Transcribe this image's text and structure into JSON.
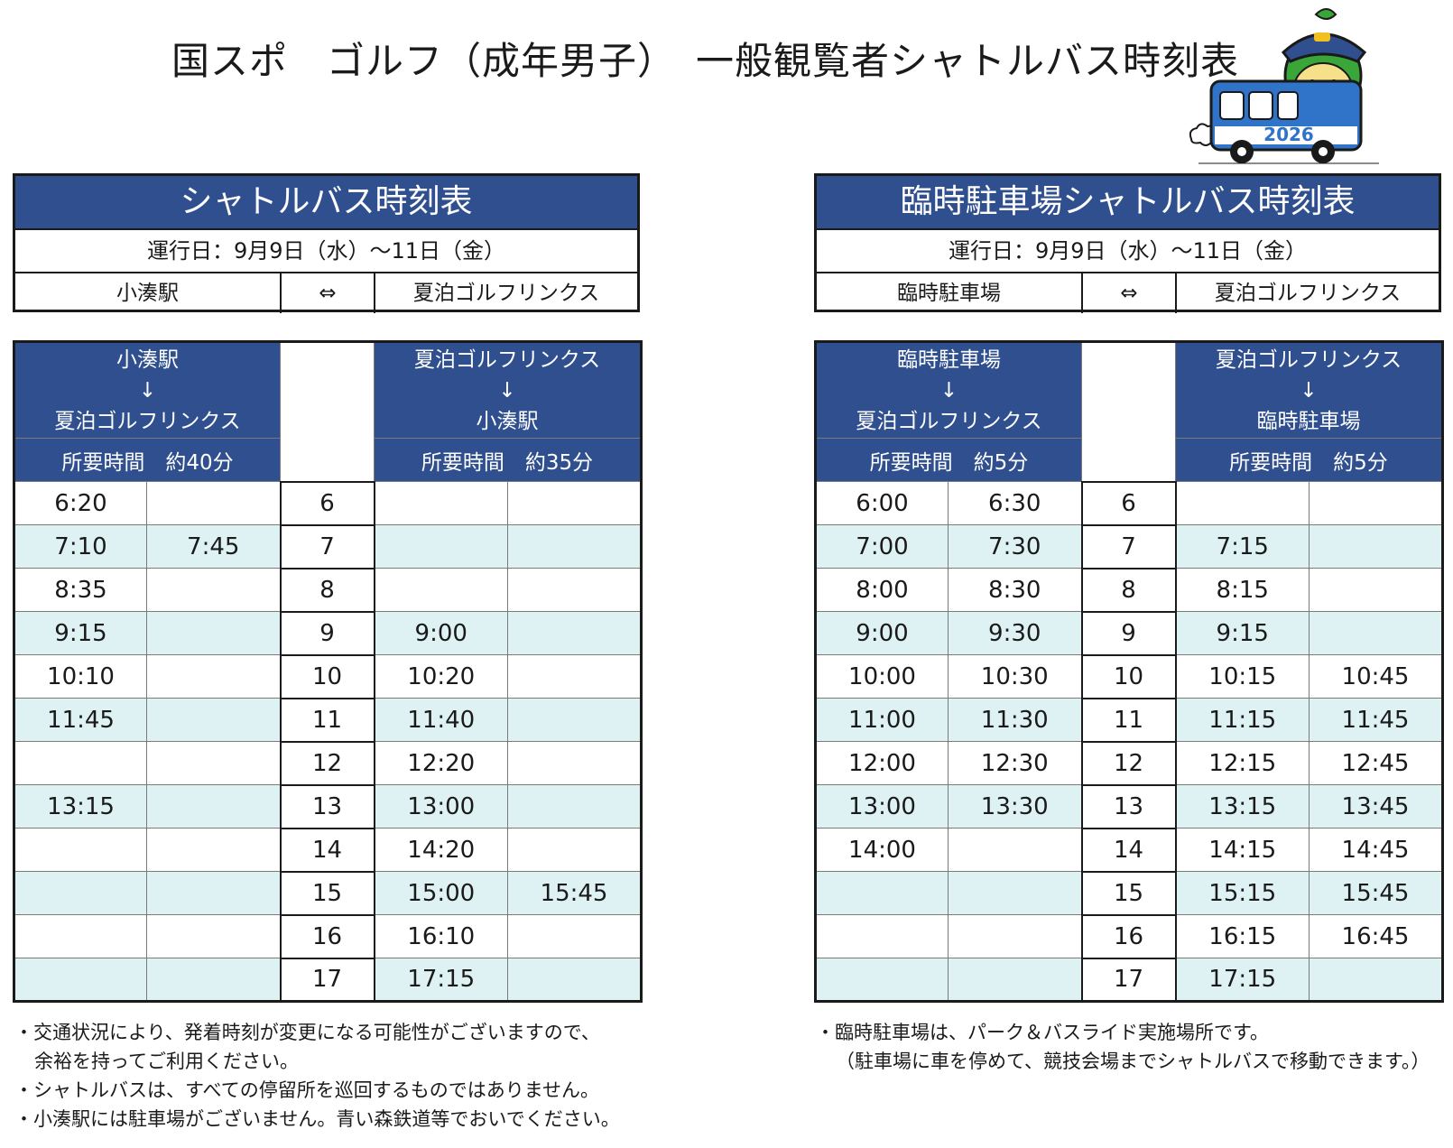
{
  "title": "国スポ　ゴルフ（成年男子）　一般観覧者シャトルバス時刻表",
  "mascot": {
    "year_badge": "2026",
    "icon": "bus-mascot-icon"
  },
  "colors": {
    "header_blue": "#2f4f8f",
    "row_alt": "#dff2f3"
  },
  "left": {
    "header_title": "シャトルバス時刻表",
    "operating_days": "運行日：9月9日（水）～11日（金）",
    "route": {
      "from": "小湊駅",
      "arrow": "⇔",
      "to": "夏泊ゴルフリンクス"
    },
    "outbound": {
      "from": "小湊駅",
      "arrow": "↓",
      "to": "夏泊ゴルフリンクス",
      "duration": "所要時間　約40分"
    },
    "inbound": {
      "from": "夏泊ゴルフリンクス",
      "arrow": "↓",
      "to": "小湊駅",
      "duration": "所要時間　約35分"
    },
    "rows": [
      {
        "hour": "6",
        "out": [
          "6:20",
          ""
        ],
        "in": [
          "",
          ""
        ]
      },
      {
        "hour": "7",
        "out": [
          "7:10",
          "7:45"
        ],
        "in": [
          "",
          ""
        ]
      },
      {
        "hour": "8",
        "out": [
          "8:35",
          ""
        ],
        "in": [
          "",
          ""
        ]
      },
      {
        "hour": "9",
        "out": [
          "9:15",
          ""
        ],
        "in": [
          "9:00",
          ""
        ]
      },
      {
        "hour": "10",
        "out": [
          "10:10",
          ""
        ],
        "in": [
          "10:20",
          ""
        ]
      },
      {
        "hour": "11",
        "out": [
          "11:45",
          ""
        ],
        "in": [
          "11:40",
          ""
        ]
      },
      {
        "hour": "12",
        "out": [
          "",
          ""
        ],
        "in": [
          "12:20",
          ""
        ]
      },
      {
        "hour": "13",
        "out": [
          "13:15",
          ""
        ],
        "in": [
          "13:00",
          ""
        ]
      },
      {
        "hour": "14",
        "out": [
          "",
          ""
        ],
        "in": [
          "14:20",
          ""
        ]
      },
      {
        "hour": "15",
        "out": [
          "",
          ""
        ],
        "in": [
          "15:00",
          "15:45"
        ]
      },
      {
        "hour": "16",
        "out": [
          "",
          ""
        ],
        "in": [
          "16:10",
          ""
        ]
      },
      {
        "hour": "17",
        "out": [
          "",
          ""
        ],
        "in": [
          "17:15",
          ""
        ]
      }
    ],
    "notes": [
      "・交通状況により、発着時刻が変更になる可能性がございますので、",
      "余裕を持ってご利用ください。",
      "・シャトルバスは、すべての停留所を巡回するものではありません。",
      "・小湊駅には駐車場がございません。青い森鉄道等でおいでください。"
    ]
  },
  "right": {
    "header_title": "臨時駐車場シャトルバス時刻表",
    "operating_days": "運行日：9月9日（水）～11日（金）",
    "route": {
      "from": "臨時駐車場",
      "arrow": "⇔",
      "to": "夏泊ゴルフリンクス"
    },
    "outbound": {
      "from": "臨時駐車場",
      "arrow": "↓",
      "to": "夏泊ゴルフリンクス",
      "duration": "所要時間　約5分"
    },
    "inbound": {
      "from": "夏泊ゴルフリンクス",
      "arrow": "↓",
      "to": "臨時駐車場",
      "duration": "所要時間　約5分"
    },
    "rows": [
      {
        "hour": "6",
        "out": [
          "6:00",
          "6:30"
        ],
        "in": [
          "",
          ""
        ]
      },
      {
        "hour": "7",
        "out": [
          "7:00",
          "7:30"
        ],
        "in": [
          "7:15",
          ""
        ]
      },
      {
        "hour": "8",
        "out": [
          "8:00",
          "8:30"
        ],
        "in": [
          "8:15",
          ""
        ]
      },
      {
        "hour": "9",
        "out": [
          "9:00",
          "9:30"
        ],
        "in": [
          "9:15",
          ""
        ]
      },
      {
        "hour": "10",
        "out": [
          "10:00",
          "10:30"
        ],
        "in": [
          "10:15",
          "10:45"
        ]
      },
      {
        "hour": "11",
        "out": [
          "11:00",
          "11:30"
        ],
        "in": [
          "11:15",
          "11:45"
        ]
      },
      {
        "hour": "12",
        "out": [
          "12:00",
          "12:30"
        ],
        "in": [
          "12:15",
          "12:45"
        ]
      },
      {
        "hour": "13",
        "out": [
          "13:00",
          "13:30"
        ],
        "in": [
          "13:15",
          "13:45"
        ]
      },
      {
        "hour": "14",
        "out": [
          "14:00",
          ""
        ],
        "in": [
          "14:15",
          "14:45"
        ]
      },
      {
        "hour": "15",
        "out": [
          "",
          ""
        ],
        "in": [
          "15:15",
          "15:45"
        ]
      },
      {
        "hour": "16",
        "out": [
          "",
          ""
        ],
        "in": [
          "16:15",
          "16:45"
        ]
      },
      {
        "hour": "17",
        "out": [
          "",
          ""
        ],
        "in": [
          "17:15",
          ""
        ]
      }
    ],
    "notes": [
      "・臨時駐車場は、パーク＆バスライド実施場所です。",
      "（駐車場に車を停めて、競技会場までシャトルバスで移動できます。）"
    ]
  }
}
